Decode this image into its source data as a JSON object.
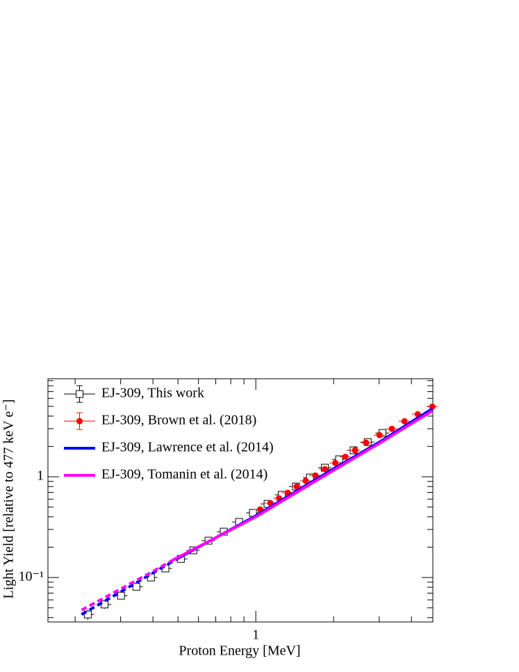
{
  "chart_data": {
    "type": "scatter",
    "x_label": "Proton Energy [MeV]",
    "y_label": "Light Yield [relative to 477 keV e⁻]",
    "xscale": "log",
    "yscale": "log",
    "xlim": [
      0.157,
      4.84
    ],
    "ylim": [
      0.0362,
      9.4
    ],
    "xticks": [
      1
    ],
    "yticks": [
      {
        "value": 0.1,
        "label": "10⁻¹"
      },
      1
    ],
    "legend": "top-left",
    "series": [
      {
        "name": "EJ-309, This work",
        "color": "#000000",
        "marker": "open-square",
        "x": [
          0.224,
          0.26,
          0.301,
          0.345,
          0.393,
          0.447,
          0.513,
          0.573,
          0.656,
          0.752,
          0.862,
          0.975,
          1.11,
          1.26,
          1.43,
          1.62,
          1.85,
          2.1,
          2.39,
          2.71,
          3.09
        ],
        "xerr": [
          0.013,
          0.016,
          0.018,
          0.021,
          0.024,
          0.027,
          0.031,
          0.034,
          0.039,
          0.045,
          0.052,
          0.058,
          0.067,
          0.076,
          0.086,
          0.097,
          0.11,
          0.13,
          0.14,
          0.16,
          0.19
        ],
        "values": [
          0.043,
          0.054,
          0.066,
          0.081,
          0.1,
          0.123,
          0.153,
          0.186,
          0.232,
          0.285,
          0.356,
          0.438,
          0.538,
          0.662,
          0.8,
          0.984,
          1.23,
          1.49,
          1.83,
          2.21,
          2.72
        ],
        "yerr": [
          0.005,
          0.005,
          0.004,
          0.005,
          0.006,
          0.007,
          0.009,
          0.011,
          0.014,
          0.017,
          0.021,
          0.026,
          0.032,
          0.04,
          0.048,
          0.059,
          0.074,
          0.089,
          0.11,
          0.13,
          0.16
        ]
      },
      {
        "name": "EJ-309, Brown et al. (2018)",
        "color": "#ff0000",
        "marker": "circle",
        "x": [
          1.04,
          1.14,
          1.23,
          1.33,
          1.44,
          1.56,
          1.7,
          1.85,
          2.03,
          2.22,
          2.42,
          2.67,
          3.01,
          3.36,
          3.76,
          4.23,
          4.82
        ],
        "xerr": [
          0.05,
          0.06,
          0.06,
          0.07,
          0.07,
          0.08,
          0.09,
          0.09,
          0.1,
          0.11,
          0.12,
          0.13,
          0.15,
          0.17,
          0.19,
          0.21,
          0.24
        ],
        "values": [
          0.474,
          0.547,
          0.611,
          0.693,
          0.8,
          0.909,
          1.03,
          1.19,
          1.37,
          1.58,
          1.83,
          2.18,
          2.59,
          2.99,
          3.56,
          4.18,
          4.97
        ]
      },
      {
        "name": "EJ-309, Lawrence et al. (2014)",
        "color": "#0000ff",
        "marker": "line",
        "segments": [
          {
            "style": "dashed",
            "x": [
              0.212,
              0.3,
              0.4,
              0.5
            ],
            "values": [
              0.043,
              0.072,
              0.111,
              0.155
            ]
          },
          {
            "style": "solid",
            "x": [
              0.5,
              1,
              2,
              3,
              4.82
            ],
            "values": [
              0.155,
              0.41,
              1.2,
              2.2,
              4.74
            ]
          }
        ]
      },
      {
        "name": "EJ-309, Tomanin et al. (2014)",
        "color": "#ff00ff",
        "marker": "line",
        "segments": [
          {
            "style": "dashed",
            "x": [
              0.212,
              0.3,
              0.4,
              0.48
            ],
            "values": [
              0.0476,
              0.077,
              0.115,
              0.15
            ]
          },
          {
            "style": "solid",
            "x": [
              0.48,
              1,
              2,
              3,
              4.82
            ],
            "values": [
              0.15,
              0.4,
              1.16,
              2.14,
              4.52
            ]
          }
        ]
      }
    ]
  }
}
